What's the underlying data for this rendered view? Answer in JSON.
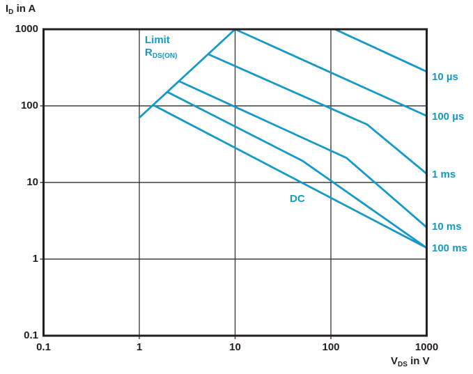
{
  "figure": {
    "y_axis_title": {
      "base": "I",
      "sub": "D",
      "rest": " in A"
    },
    "x_axis_title": {
      "base": "V",
      "sub": "DS",
      "rest": " in V"
    },
    "limit_label": {
      "line1": "Limit",
      "line2_base": "R",
      "line2_sub": "DS(ON)"
    },
    "dc_label": "DC",
    "colors": {
      "curve": "#1499c9",
      "axis": "#231f20",
      "grid": "#3e3e3e",
      "background": "#ffffff",
      "text": "#231f20"
    }
  },
  "chart_data": {
    "type": "line",
    "title": "",
    "xlabel": "V_DS in V",
    "ylabel": "I_D in A",
    "x_scale": "log",
    "y_scale": "log",
    "xlim": [
      0.1,
      1000
    ],
    "ylim": [
      0.1,
      1000
    ],
    "x_ticks": [
      "0.1",
      "1",
      "10",
      "100",
      "1000"
    ],
    "y_ticks": [
      "1000",
      "100",
      "10",
      "1",
      "0.1"
    ],
    "grid": true,
    "legend_position": "right-edge-labels",
    "series": [
      {
        "name": "limit_rdson",
        "label": "Limit R_DS(ON)",
        "label_position": "left-of-line",
        "points": [
          [
            1.0,
            70
          ],
          [
            10,
            1000
          ]
        ]
      },
      {
        "name": "t_10us",
        "label": "10 µs",
        "label_position": "right",
        "points": [
          [
            110,
            1000
          ],
          [
            1000,
            280
          ]
        ]
      },
      {
        "name": "t_100us",
        "label": "100 µs",
        "label_position": "right",
        "points": [
          [
            10,
            1000
          ],
          [
            1000,
            74
          ]
        ]
      },
      {
        "name": "t_1ms",
        "label": "1 ms",
        "label_position": "right",
        "points": [
          [
            5.3,
            470
          ],
          [
            240,
            57
          ],
          [
            1000,
            13
          ]
        ]
      },
      {
        "name": "t_10ms",
        "label": "10 ms",
        "label_position": "right",
        "points": [
          [
            2.6,
            210
          ],
          [
            145,
            21
          ],
          [
            1000,
            2.6
          ]
        ]
      },
      {
        "name": "t_100ms",
        "label": "100 ms",
        "label_position": "right",
        "points": [
          [
            2.0,
            150
          ],
          [
            51,
            19
          ],
          [
            1000,
            1.4
          ]
        ]
      },
      {
        "name": "dc",
        "label": "DC",
        "label_position": "mid-below",
        "points": [
          [
            1.45,
            100
          ],
          [
            1000,
            1.4
          ]
        ]
      }
    ]
  }
}
